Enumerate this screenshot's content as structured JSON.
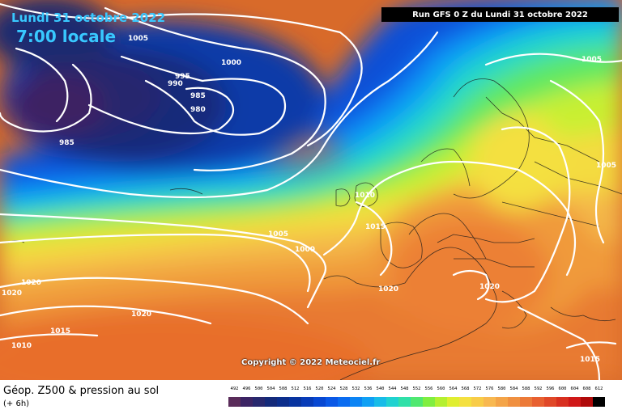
{
  "header": {
    "date": "Lundi 31 octobre 2022",
    "time": "7:00 locale",
    "run": "Run GFS 0 Z du Lundi 31 octobre 2022"
  },
  "footer": {
    "copyright": "Copyright © 2022 Meteociel.fr",
    "title": "Géop. Z500 & pression au sol",
    "subtitle": "(+ 6h)"
  },
  "legend": {
    "ticks": [
      "492",
      "496",
      "500",
      "504",
      "508",
      "512",
      "516",
      "520",
      "524",
      "528",
      "532",
      "536",
      "540",
      "544",
      "548",
      "552",
      "556",
      "560",
      "564",
      "568",
      "572",
      "576",
      "580",
      "584",
      "588",
      "592",
      "596",
      "600",
      "604",
      "608",
      "612"
    ],
    "colors": [
      "#5a2c5a",
      "#3c2464",
      "#28286e",
      "#142a7a",
      "#0c2e8c",
      "#0834a0",
      "#083cb8",
      "#0848d2",
      "#0a58e6",
      "#0a6cf0",
      "#0c84f4",
      "#10a0f4",
      "#18bce8",
      "#20d2d0",
      "#30e0a8",
      "#50e870",
      "#80ee40",
      "#b4f030",
      "#e0ee30",
      "#f4e040",
      "#f8cc48",
      "#f8b850",
      "#f4a448",
      "#f09040",
      "#ec7a38",
      "#e86030",
      "#e04828",
      "#d83020",
      "#d01818",
      "#b00a0a",
      "#000000"
    ]
  },
  "isobars": [
    {
      "label": "1005",
      "color": "#ffffff"
    },
    {
      "label": "1000",
      "color": "#ffffff"
    },
    {
      "label": "995",
      "color": "#ffffff"
    },
    {
      "label": "990",
      "color": "#ffffff"
    },
    {
      "label": "985",
      "color": "#ffffff"
    },
    {
      "label": "980",
      "color": "#ffffff"
    },
    {
      "label": "985",
      "color": "#ffffff"
    },
    {
      "label": "1005",
      "color": "#ffffff"
    },
    {
      "label": "1005",
      "color": "#ffffff"
    },
    {
      "label": "1010",
      "color": "#ffffff"
    },
    {
      "label": "1015",
      "color": "#ffffff"
    },
    {
      "label": "1005",
      "color": "#ffffff"
    },
    {
      "label": "1000",
      "color": "#ffffff"
    },
    {
      "label": "1020",
      "color": "#ffffff"
    },
    {
      "label": "1020",
      "color": "#ffffff"
    },
    {
      "label": "1020",
      "color": "#ffffff"
    },
    {
      "label": "1020",
      "color": "#ffffff"
    },
    {
      "label": "1015",
      "color": "#ffffff"
    },
    {
      "label": "1010",
      "color": "#ffffff"
    },
    {
      "label": "1015",
      "color": "#ffffff"
    }
  ]
}
